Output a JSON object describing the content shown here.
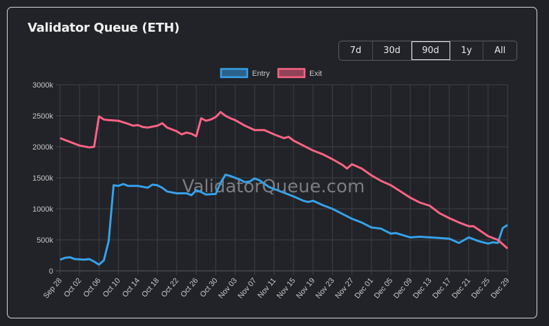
{
  "card": {
    "title": "Validator Queue (ETH)"
  },
  "range_buttons": [
    {
      "label": "7d",
      "active": false
    },
    {
      "label": "30d",
      "active": false
    },
    {
      "label": "90d",
      "active": true
    },
    {
      "label": "1y",
      "active": false
    },
    {
      "label": "All",
      "active": false
    }
  ],
  "watermark": "ValidatorQueue.com",
  "chart_data": {
    "type": "line",
    "title": "",
    "xlabel": "",
    "ylabel": "",
    "ylim": [
      0,
      3000
    ],
    "y_unit_suffix": "k",
    "y_ticks": [
      "0",
      "500k",
      "1000k",
      "1500k",
      "2000k",
      "2500k",
      "3000k"
    ],
    "x_ticks": [
      "Sep 28",
      "Oct 02",
      "Oct 06",
      "Oct 10",
      "Oct 14",
      "Oct 18",
      "Oct 22",
      "Oct 26",
      "Oct 30",
      "Nov 03",
      "Nov 07",
      "Nov 11",
      "Nov 15",
      "Nov 19",
      "Nov 23",
      "Nov 27",
      "Dec 01",
      "Dec 05",
      "Dec 09",
      "Dec 13",
      "Dec 17",
      "Dec 21",
      "Dec 25",
      "Dec 29"
    ],
    "grid": true,
    "legend_placement": "top",
    "background": "#212328",
    "series": [
      {
        "name": "Entry",
        "color": "#36a2eb",
        "points": [
          [
            "Sep 28",
            180
          ],
          [
            "Sep 29",
            210
          ],
          [
            "Sep 30",
            220
          ],
          [
            "Oct 01",
            190
          ],
          [
            "Oct 03",
            180
          ],
          [
            "Oct 04",
            190
          ],
          [
            "Oct 05",
            150
          ],
          [
            "Oct 06",
            100
          ],
          [
            "Oct 07",
            170
          ],
          [
            "Oct 08",
            480
          ],
          [
            "Oct 09",
            1380
          ],
          [
            "Oct 10",
            1370
          ],
          [
            "Oct 11",
            1400
          ],
          [
            "Oct 12",
            1370
          ],
          [
            "Oct 14",
            1370
          ],
          [
            "Oct 16",
            1340
          ],
          [
            "Oct 17",
            1390
          ],
          [
            "Oct 18",
            1380
          ],
          [
            "Oct 19",
            1340
          ],
          [
            "Oct 20",
            1280
          ],
          [
            "Oct 22",
            1250
          ],
          [
            "Oct 24",
            1250
          ],
          [
            "Oct 25",
            1220
          ],
          [
            "Oct 26",
            1300
          ],
          [
            "Oct 27",
            1270
          ],
          [
            "Oct 28",
            1230
          ],
          [
            "Oct 30",
            1240
          ],
          [
            "Oct 31",
            1420
          ],
          [
            "Nov 01",
            1550
          ],
          [
            "Nov 02",
            1530
          ],
          [
            "Nov 04",
            1470
          ],
          [
            "Nov 05",
            1430
          ],
          [
            "Nov 06",
            1440
          ],
          [
            "Nov 07",
            1490
          ],
          [
            "Nov 08",
            1460
          ],
          [
            "Nov 10",
            1350
          ],
          [
            "Nov 12",
            1290
          ],
          [
            "Nov 15",
            1200
          ],
          [
            "Nov 17",
            1130
          ],
          [
            "Nov 18",
            1110
          ],
          [
            "Nov 19",
            1130
          ],
          [
            "Nov 21",
            1060
          ],
          [
            "Nov 23",
            1000
          ],
          [
            "Nov 25",
            920
          ],
          [
            "Nov 27",
            840
          ],
          [
            "Nov 29",
            780
          ],
          [
            "Dec 01",
            700
          ],
          [
            "Dec 03",
            680
          ],
          [
            "Dec 05",
            600
          ],
          [
            "Dec 06",
            610
          ],
          [
            "Dec 09",
            540
          ],
          [
            "Dec 11",
            550
          ],
          [
            "Dec 13",
            540
          ],
          [
            "Dec 17",
            520
          ],
          [
            "Dec 19",
            450
          ],
          [
            "Dec 21",
            540
          ],
          [
            "Dec 23",
            480
          ],
          [
            "Dec 25",
            440
          ],
          [
            "Dec 26",
            460
          ],
          [
            "Dec 27",
            450
          ],
          [
            "Dec 28",
            690
          ],
          [
            "Dec 29",
            740
          ]
        ]
      },
      {
        "name": "Exit",
        "color": "#ff6384",
        "points": [
          [
            "Sep 28",
            2140
          ],
          [
            "Sep 30",
            2080
          ],
          [
            "Oct 02",
            2020
          ],
          [
            "Oct 04",
            1990
          ],
          [
            "Oct 05",
            2000
          ],
          [
            "Oct 06",
            2490
          ],
          [
            "Oct 07",
            2440
          ],
          [
            "Oct 08",
            2430
          ],
          [
            "Oct 10",
            2420
          ],
          [
            "Oct 12",
            2370
          ],
          [
            "Oct 13",
            2340
          ],
          [
            "Oct 14",
            2350
          ],
          [
            "Oct 15",
            2320
          ],
          [
            "Oct 16",
            2310
          ],
          [
            "Oct 18",
            2340
          ],
          [
            "Oct 19",
            2380
          ],
          [
            "Oct 20",
            2310
          ],
          [
            "Oct 22",
            2250
          ],
          [
            "Oct 23",
            2200
          ],
          [
            "Oct 24",
            2230
          ],
          [
            "Oct 25",
            2210
          ],
          [
            "Oct 26",
            2170
          ],
          [
            "Oct 27",
            2460
          ],
          [
            "Oct 28",
            2420
          ],
          [
            "Oct 29",
            2440
          ],
          [
            "Oct 30",
            2480
          ],
          [
            "Oct 31",
            2560
          ],
          [
            "Nov 01",
            2500
          ],
          [
            "Nov 02",
            2460
          ],
          [
            "Nov 03",
            2430
          ],
          [
            "Nov 05",
            2340
          ],
          [
            "Nov 07",
            2270
          ],
          [
            "Nov 09",
            2270
          ],
          [
            "Nov 11",
            2200
          ],
          [
            "Nov 13",
            2140
          ],
          [
            "Nov 14",
            2160
          ],
          [
            "Nov 15",
            2100
          ],
          [
            "Nov 17",
            2020
          ],
          [
            "Nov 19",
            1940
          ],
          [
            "Nov 21",
            1880
          ],
          [
            "Nov 23",
            1800
          ],
          [
            "Nov 25",
            1710
          ],
          [
            "Nov 26",
            1650
          ],
          [
            "Nov 27",
            1720
          ],
          [
            "Nov 29",
            1650
          ],
          [
            "Dec 01",
            1540
          ],
          [
            "Dec 03",
            1450
          ],
          [
            "Dec 05",
            1380
          ],
          [
            "Dec 07",
            1280
          ],
          [
            "Dec 09",
            1180
          ],
          [
            "Dec 11",
            1100
          ],
          [
            "Dec 13",
            1050
          ],
          [
            "Dec 15",
            930
          ],
          [
            "Dec 17",
            850
          ],
          [
            "Dec 19",
            780
          ],
          [
            "Dec 21",
            720
          ],
          [
            "Dec 22",
            720
          ],
          [
            "Dec 25",
            560
          ],
          [
            "Dec 27",
            500
          ],
          [
            "Dec 29",
            360
          ]
        ]
      }
    ]
  }
}
